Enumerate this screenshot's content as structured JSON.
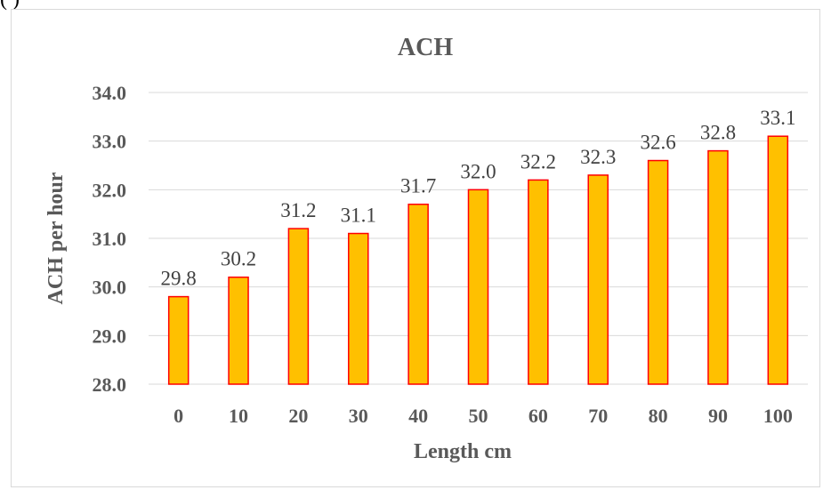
{
  "header_fragment": "(       )",
  "chart_data": {
    "type": "bar",
    "title": "ACH",
    "xlabel": "Length cm",
    "ylabel": "ACH per hour",
    "categories": [
      "0",
      "10",
      "20",
      "30",
      "40",
      "50",
      "60",
      "70",
      "80",
      "90",
      "100"
    ],
    "values": [
      29.8,
      30.2,
      31.2,
      31.1,
      31.7,
      32.0,
      32.2,
      32.3,
      32.6,
      32.8,
      33.1
    ],
    "data_labels": [
      "29.8",
      "30.2",
      "31.2",
      "31.1",
      "31.7",
      "32.0",
      "32.2",
      "32.3",
      "32.6",
      "32.8",
      "33.1"
    ],
    "ylim": [
      28.0,
      34.0
    ],
    "yticks": [
      "28.0",
      "29.0",
      "30.0",
      "31.0",
      "32.0",
      "33.0",
      "34.0"
    ],
    "grid": true,
    "colors": {
      "bar_fill": "#FFC000",
      "bar_stroke": "#FF0000",
      "grid": "#d9d9d9",
      "text": "#595959"
    }
  }
}
